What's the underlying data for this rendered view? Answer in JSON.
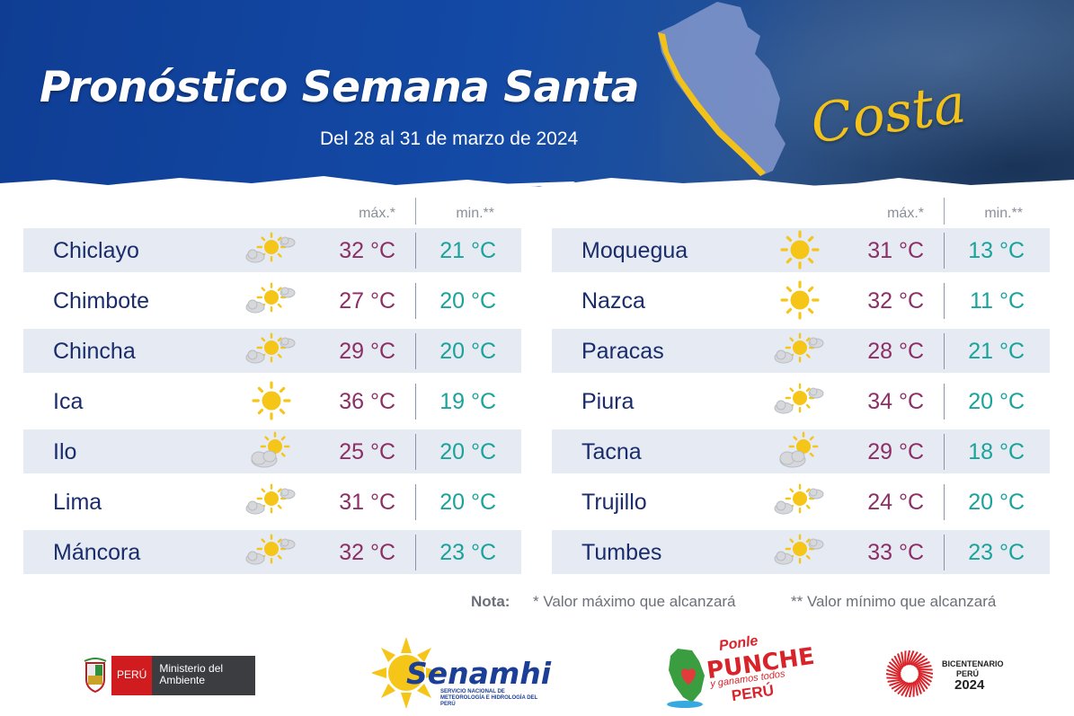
{
  "header": {
    "title": "Pronóstico Semana Santa",
    "subtitle": "Del 28 al 31 de marzo de 2024",
    "region": "Costa"
  },
  "columns": {
    "max_label": "máx.*",
    "min_label": "min.**"
  },
  "left_table": [
    {
      "city": "Chiclayo",
      "icon": "partly-cloudy-icon",
      "max": "32 °C",
      "min": "21 °C"
    },
    {
      "city": "Chimbote",
      "icon": "partly-cloudy-icon",
      "max": "27 °C",
      "min": "20 °C"
    },
    {
      "city": "Chincha",
      "icon": "partly-cloudy-icon",
      "max": "29 °C",
      "min": "20 °C"
    },
    {
      "city": "Ica",
      "icon": "sun-icon",
      "max": "36 °C",
      "min": "19 °C"
    },
    {
      "city": "Ilo",
      "icon": "cloudy-sun-icon",
      "max": "25 °C",
      "min": "20 °C"
    },
    {
      "city": "Lima",
      "icon": "partly-cloudy-icon",
      "max": "31 °C",
      "min": "20 °C"
    },
    {
      "city": "Máncora",
      "icon": "partly-cloudy-icon",
      "max": "32 °C",
      "min": "23 °C"
    }
  ],
  "right_table": [
    {
      "city": "Moquegua",
      "icon": "sun-icon",
      "max": "31 °C",
      "min": "13 °C"
    },
    {
      "city": "Nazca",
      "icon": "sun-icon",
      "max": "32 °C",
      "min": "11 °C"
    },
    {
      "city": "Paracas",
      "icon": "partly-cloudy-icon",
      "max": "28 °C",
      "min": "21 °C"
    },
    {
      "city": "Piura",
      "icon": "partly-cloudy-icon",
      "max": "34 °C",
      "min": "20 °C"
    },
    {
      "city": "Tacna",
      "icon": "cloudy-sun-icon",
      "max": "29 °C",
      "min": "18 °C"
    },
    {
      "city": "Trujillo",
      "icon": "partly-cloudy-icon",
      "max": "24 °C",
      "min": "20 °C"
    },
    {
      "city": "Tumbes",
      "icon": "partly-cloudy-icon",
      "max": "33 °C",
      "min": "23 °C"
    }
  ],
  "note": {
    "label": "Nota:",
    "max_note": "* Valor máximo que alcanzará",
    "min_note": "** Valor mínimo que alcanzará"
  },
  "footer": {
    "minam_country": "PERÚ",
    "minam_ministry": "Ministerio del Ambiente",
    "senamhi_name": "Senamhi",
    "senamhi_full": "SERVICIO NACIONAL DE METEOROLOGÍA E HIDROLOGÍA DEL PERÚ",
    "ponle_line1": "Ponle",
    "ponle_line2": "PUNCHE",
    "ponle_line3": "y ganamos todos",
    "ponle_line4": "PERÚ",
    "bicent_line1": "BICENTENARIO",
    "bicent_line2": "PERÚ",
    "bicent_line3": "2024"
  },
  "colors": {
    "header_blue": "#134aa6",
    "region_gold": "#f2c21a",
    "city_text": "#1a2c6b",
    "max_temp": "#8c2f66",
    "min_temp": "#1aa39a",
    "row_shade": "#e5eaf3"
  }
}
